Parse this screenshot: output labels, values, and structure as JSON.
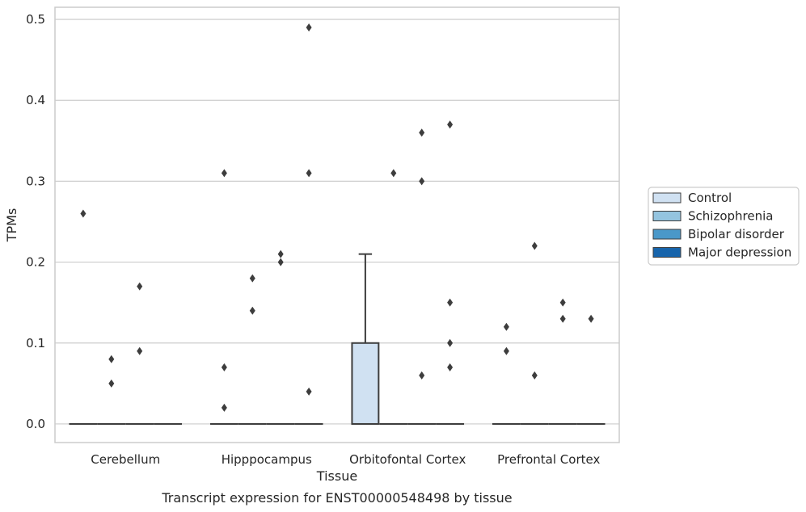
{
  "chart_data": {
    "type": "boxplot",
    "title": "",
    "caption": "Transcript expression for ENST00000548498 by tissue",
    "xlabel": "Tissue",
    "ylabel": "TPMs",
    "ylim": [
      -0.023,
      0.515
    ],
    "yticks": [
      0.0,
      0.1,
      0.2,
      0.3,
      0.4,
      0.5
    ],
    "ytick_labels": [
      "0.0",
      "0.1",
      "0.2",
      "0.3",
      "0.4",
      "0.5"
    ],
    "categories": [
      "Cerebellum",
      "Hipppocampus",
      "Orbitofontal Cortex",
      "Prefrontal Cortex"
    ],
    "grid": "horizontal",
    "legend": {
      "placement": "right",
      "entries": [
        {
          "name": "Control",
          "color": "#d0e1f2"
        },
        {
          "name": "Schizophrenia",
          "color": "#94c4df"
        },
        {
          "name": "Bipolar disorder",
          "color": "#4a98c9"
        },
        {
          "name": "Major depression",
          "color": "#1764ab"
        }
      ]
    },
    "series": [
      {
        "name": "Control",
        "color": "#d0e1f2",
        "boxes": [
          {
            "q1": 0,
            "median": 0,
            "q3": 0,
            "whisker_low": 0,
            "whisker_high": 0,
            "outliers": [
              0.26
            ]
          },
          {
            "q1": 0,
            "median": 0,
            "q3": 0,
            "whisker_low": 0,
            "whisker_high": 0,
            "outliers": [
              0.31,
              0.07,
              0.02
            ]
          },
          {
            "q1": 0,
            "median": 0,
            "q3": 0.1,
            "whisker_low": 0,
            "whisker_high": 0.21,
            "outliers": []
          },
          {
            "q1": 0,
            "median": 0,
            "q3": 0,
            "whisker_low": 0,
            "whisker_high": 0,
            "outliers": [
              0.12,
              0.09
            ]
          }
        ]
      },
      {
        "name": "Schizophrenia",
        "color": "#94c4df",
        "boxes": [
          {
            "q1": 0,
            "median": 0,
            "q3": 0,
            "whisker_low": 0,
            "whisker_high": 0,
            "outliers": [
              0.08,
              0.05
            ]
          },
          {
            "q1": 0,
            "median": 0,
            "q3": 0,
            "whisker_low": 0,
            "whisker_high": 0,
            "outliers": [
              0.18,
              0.14
            ]
          },
          {
            "q1": 0,
            "median": 0,
            "q3": 0,
            "whisker_low": 0,
            "whisker_high": 0,
            "outliers": [
              0.31
            ]
          },
          {
            "q1": 0,
            "median": 0,
            "q3": 0,
            "whisker_low": 0,
            "whisker_high": 0,
            "outliers": [
              0.22,
              0.06
            ]
          }
        ]
      },
      {
        "name": "Bipolar disorder",
        "color": "#4a98c9",
        "boxes": [
          {
            "q1": 0,
            "median": 0,
            "q3": 0,
            "whisker_low": 0,
            "whisker_high": 0,
            "outliers": [
              0.17,
              0.09
            ]
          },
          {
            "q1": 0,
            "median": 0,
            "q3": 0,
            "whisker_low": 0,
            "whisker_high": 0,
            "outliers": [
              0.21,
              0.2
            ]
          },
          {
            "q1": 0,
            "median": 0,
            "q3": 0,
            "whisker_low": 0,
            "whisker_high": 0,
            "outliers": [
              0.36,
              0.3,
              0.06
            ]
          },
          {
            "q1": 0,
            "median": 0,
            "q3": 0,
            "whisker_low": 0,
            "whisker_high": 0,
            "outliers": [
              0.15,
              0.13
            ]
          }
        ]
      },
      {
        "name": "Major depression",
        "color": "#1764ab",
        "boxes": [
          {
            "q1": 0,
            "median": 0,
            "q3": 0,
            "whisker_low": 0,
            "whisker_high": 0,
            "outliers": []
          },
          {
            "q1": 0,
            "median": 0,
            "q3": 0,
            "whisker_low": 0,
            "whisker_high": 0,
            "outliers": [
              0.49,
              0.31,
              0.04
            ]
          },
          {
            "q1": 0,
            "median": 0,
            "q3": 0,
            "whisker_low": 0,
            "whisker_high": 0,
            "outliers": [
              0.37,
              0.15,
              0.1,
              0.07
            ]
          },
          {
            "q1": 0,
            "median": 0,
            "q3": 0,
            "whisker_low": 0,
            "whisker_high": 0,
            "outliers": [
              0.13
            ]
          }
        ]
      }
    ]
  }
}
